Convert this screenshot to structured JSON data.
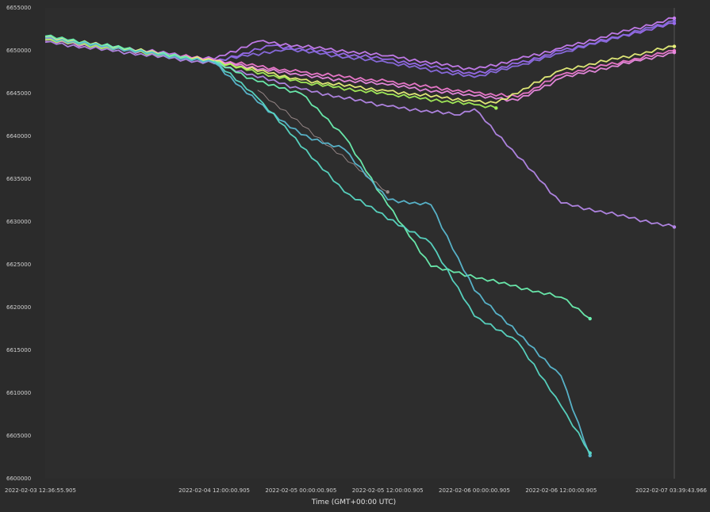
{
  "chart_data": {
    "type": "line",
    "xlabel": "Time (GMT+00:00 UTC)",
    "ylabel": "",
    "x_range": [
      "2022-02-03 12:36:55.905",
      "2022-02-07 03:39:43.966"
    ],
    "ylim": [
      6600000,
      6655000
    ],
    "grid": false,
    "x_ticks": [
      {
        "t": "2022-02-03 12:36:55",
        "label": "2022-02-03 12:36:55.905"
      },
      {
        "t": "2022-02-04 12:00:00",
        "label": "2022-02-04 12:00:00.905"
      },
      {
        "t": "2022-02-05 00:00:00",
        "label": "2022-02-05 00:00:00.905"
      },
      {
        "t": "2022-02-05 12:00:00",
        "label": "2022-02-05 12:00:00.905"
      },
      {
        "t": "2022-02-06 00:00:00",
        "label": "2022-02-06 00:00:00.905"
      },
      {
        "t": "2022-02-06 12:00:00",
        "label": "2022-02-06 12:00:00.905"
      },
      {
        "t": "2022-02-07 03:39:43",
        "label": "2022-02-07 03:39:43.966"
      }
    ],
    "y_ticks": [
      {
        "v": 6655000,
        "label": "6655000"
      },
      {
        "v": 6650000,
        "label": "6650000"
      },
      {
        "v": 6645000,
        "label": "6645000"
      },
      {
        "v": 6640000,
        "label": "6640000"
      },
      {
        "v": 6635000,
        "label": "6635000"
      },
      {
        "v": 6630000,
        "label": "6630000"
      },
      {
        "v": 6625000,
        "label": "6625000"
      },
      {
        "v": 6620000,
        "label": "6620000"
      },
      {
        "v": 6615000,
        "label": "6615000"
      },
      {
        "v": 6610000,
        "label": "6610000"
      },
      {
        "v": 6605000,
        "label": "6605000"
      },
      {
        "v": 6600000,
        "label": "6600000"
      }
    ],
    "series": [
      {
        "color": "#9b6cf0",
        "points": [
          [
            "2022-02-03 12:36:55",
            6651600
          ],
          [
            "2022-02-04 12:00:00",
            6648700
          ],
          [
            "2022-02-04 20:00:00",
            6650600
          ],
          [
            "2022-02-05 12:00:00",
            6649000
          ],
          [
            "2022-02-06 00:00:00",
            6647300
          ],
          [
            "2022-02-06 06:00:00",
            6648500
          ],
          [
            "2022-02-06 12:00:00",
            6650000
          ],
          [
            "2022-02-07 03:39:43",
            6653200
          ]
        ]
      },
      {
        "color": "#8a6be0",
        "points": [
          [
            "2022-02-03 12:36:55",
            6651300
          ],
          [
            "2022-02-04 12:00:00",
            6648800
          ],
          [
            "2022-02-04 22:00:00",
            6650200
          ],
          [
            "2022-02-05 12:00:00",
            6648600
          ],
          [
            "2022-02-06 00:00:00",
            6646900
          ],
          [
            "2022-02-06 06:00:00",
            6648200
          ],
          [
            "2022-02-06 12:00:00",
            6649700
          ],
          [
            "2022-02-07 03:39:43",
            6653500
          ]
        ]
      },
      {
        "color": "#c77df0",
        "points": [
          [
            "2022-02-03 12:36:55",
            6651500
          ],
          [
            "2022-02-04 12:00:00",
            6649000
          ],
          [
            "2022-02-04 18:00:00",
            6651100
          ],
          [
            "2022-02-05 12:00:00",
            6649400
          ],
          [
            "2022-02-06 00:00:00",
            6647800
          ],
          [
            "2022-02-06 06:00:00",
            6649000
          ],
          [
            "2022-02-06 12:00:00",
            6650300
          ],
          [
            "2022-02-07 03:39:43",
            6653800
          ]
        ]
      },
      {
        "color": "#f07ad0",
        "points": [
          [
            "2022-02-03 12:36:55",
            6651400
          ],
          [
            "2022-02-04 12:00:00",
            6648900
          ],
          [
            "2022-02-05 00:00:00",
            6647500
          ],
          [
            "2022-02-05 12:00:00",
            6646400
          ],
          [
            "2022-02-06 00:00:00",
            6645100
          ],
          [
            "2022-02-06 06:00:00",
            6644600
          ],
          [
            "2022-02-06 12:00:00",
            6647200
          ],
          [
            "2022-02-07 03:39:43",
            6650000
          ]
        ]
      },
      {
        "color": "#e98ae0",
        "points": [
          [
            "2022-02-03 12:36:55",
            6651200
          ],
          [
            "2022-02-04 12:00:00",
            6648800
          ],
          [
            "2022-02-05 00:00:00",
            6647100
          ],
          [
            "2022-02-05 12:00:00",
            6646000
          ],
          [
            "2022-02-06 00:00:00",
            6644700
          ],
          [
            "2022-02-06 06:00:00",
            6644200
          ],
          [
            "2022-02-06 12:00:00",
            6646800
          ],
          [
            "2022-02-07 03:39:43",
            6649800
          ]
        ]
      },
      {
        "color": "#e8f07a",
        "points": [
          [
            "2022-02-03 12:36:55",
            6651600
          ],
          [
            "2022-02-04 12:00:00",
            6648800
          ],
          [
            "2022-02-05 00:00:00",
            6646600
          ],
          [
            "2022-02-05 12:00:00",
            6645300
          ],
          [
            "2022-02-06 00:00:00",
            6644100
          ],
          [
            "2022-02-06 03:00:00",
            6643900
          ],
          [
            "2022-02-06 12:00:00",
            6647700
          ],
          [
            "2022-02-07 03:39:43",
            6650500
          ]
        ]
      },
      {
        "color": "#a4f05a",
        "points": [
          [
            "2022-02-03 12:36:55",
            6651300
          ],
          [
            "2022-02-04 12:00:00",
            6648700
          ],
          [
            "2022-02-05 00:00:00",
            6646300
          ],
          [
            "2022-02-05 12:00:00",
            6644900
          ],
          [
            "2022-02-06 00:00:00",
            6643700
          ],
          [
            "2022-02-06 03:00:00",
            6643300
          ]
        ]
      },
      {
        "color": "#b487e8",
        "points": [
          [
            "2022-02-03 12:36:55",
            6651000
          ],
          [
            "2022-02-04 12:00:00",
            6648500
          ],
          [
            "2022-02-05 00:00:00",
            6645500
          ],
          [
            "2022-02-05 12:00:00",
            6643500
          ],
          [
            "2022-02-05 22:00:00",
            6642500
          ],
          [
            "2022-02-06 00:00:00",
            6643200
          ],
          [
            "2022-02-06 12:00:00",
            6632200
          ],
          [
            "2022-02-07 03:39:43",
            6629400
          ]
        ]
      },
      {
        "color": "#9a8a8a",
        "points": [
          [
            "2022-02-04 18:00:00",
            6645400
          ],
          [
            "2022-02-05 12:00:00",
            6633500
          ]
        ]
      },
      {
        "color": "#6cf0b0",
        "points": [
          [
            "2022-02-03 12:36:55",
            6651700
          ],
          [
            "2022-02-04 12:00:00",
            6648700
          ],
          [
            "2022-02-04 18:00:00",
            6646400
          ],
          [
            "2022-02-05 00:00:00",
            6645000
          ],
          [
            "2022-02-05 06:00:00",
            6640000
          ],
          [
            "2022-02-05 12:00:00",
            6632000
          ],
          [
            "2022-02-05 18:00:00",
            6624800
          ],
          [
            "2022-02-06 12:00:00",
            6621200
          ],
          [
            "2022-02-06 16:00:00",
            6618700
          ]
        ]
      },
      {
        "color": "#5ab8d0",
        "points": [
          [
            "2022-02-03 12:36:55",
            6651500
          ],
          [
            "2022-02-04 12:00:00",
            6648600
          ],
          [
            "2022-02-04 18:00:00",
            6644000
          ],
          [
            "2022-02-05 00:00:00",
            6640200
          ],
          [
            "2022-02-05 06:00:00",
            6638500
          ],
          [
            "2022-02-05 12:00:00",
            6632600
          ],
          [
            "2022-02-05 18:00:00",
            6632000
          ],
          [
            "2022-02-06 00:00:00",
            6622000
          ],
          [
            "2022-02-06 12:00:00",
            6612000
          ],
          [
            "2022-02-06 16:00:00",
            6602700
          ]
        ]
      },
      {
        "color": "#58d8c4",
        "points": [
          [
            "2022-02-04 12:00:00",
            6648800
          ],
          [
            "2022-02-04 18:00:00",
            6644500
          ],
          [
            "2022-02-05 06:00:00",
            6633500
          ],
          [
            "2022-02-05 18:00:00",
            6627500
          ],
          [
            "2022-02-06 00:00:00",
            6619000
          ],
          [
            "2022-02-06 06:00:00",
            6616000
          ],
          [
            "2022-02-06 12:00:00",
            6608500
          ],
          [
            "2022-02-06 16:00:00",
            6603000
          ]
        ]
      }
    ]
  }
}
